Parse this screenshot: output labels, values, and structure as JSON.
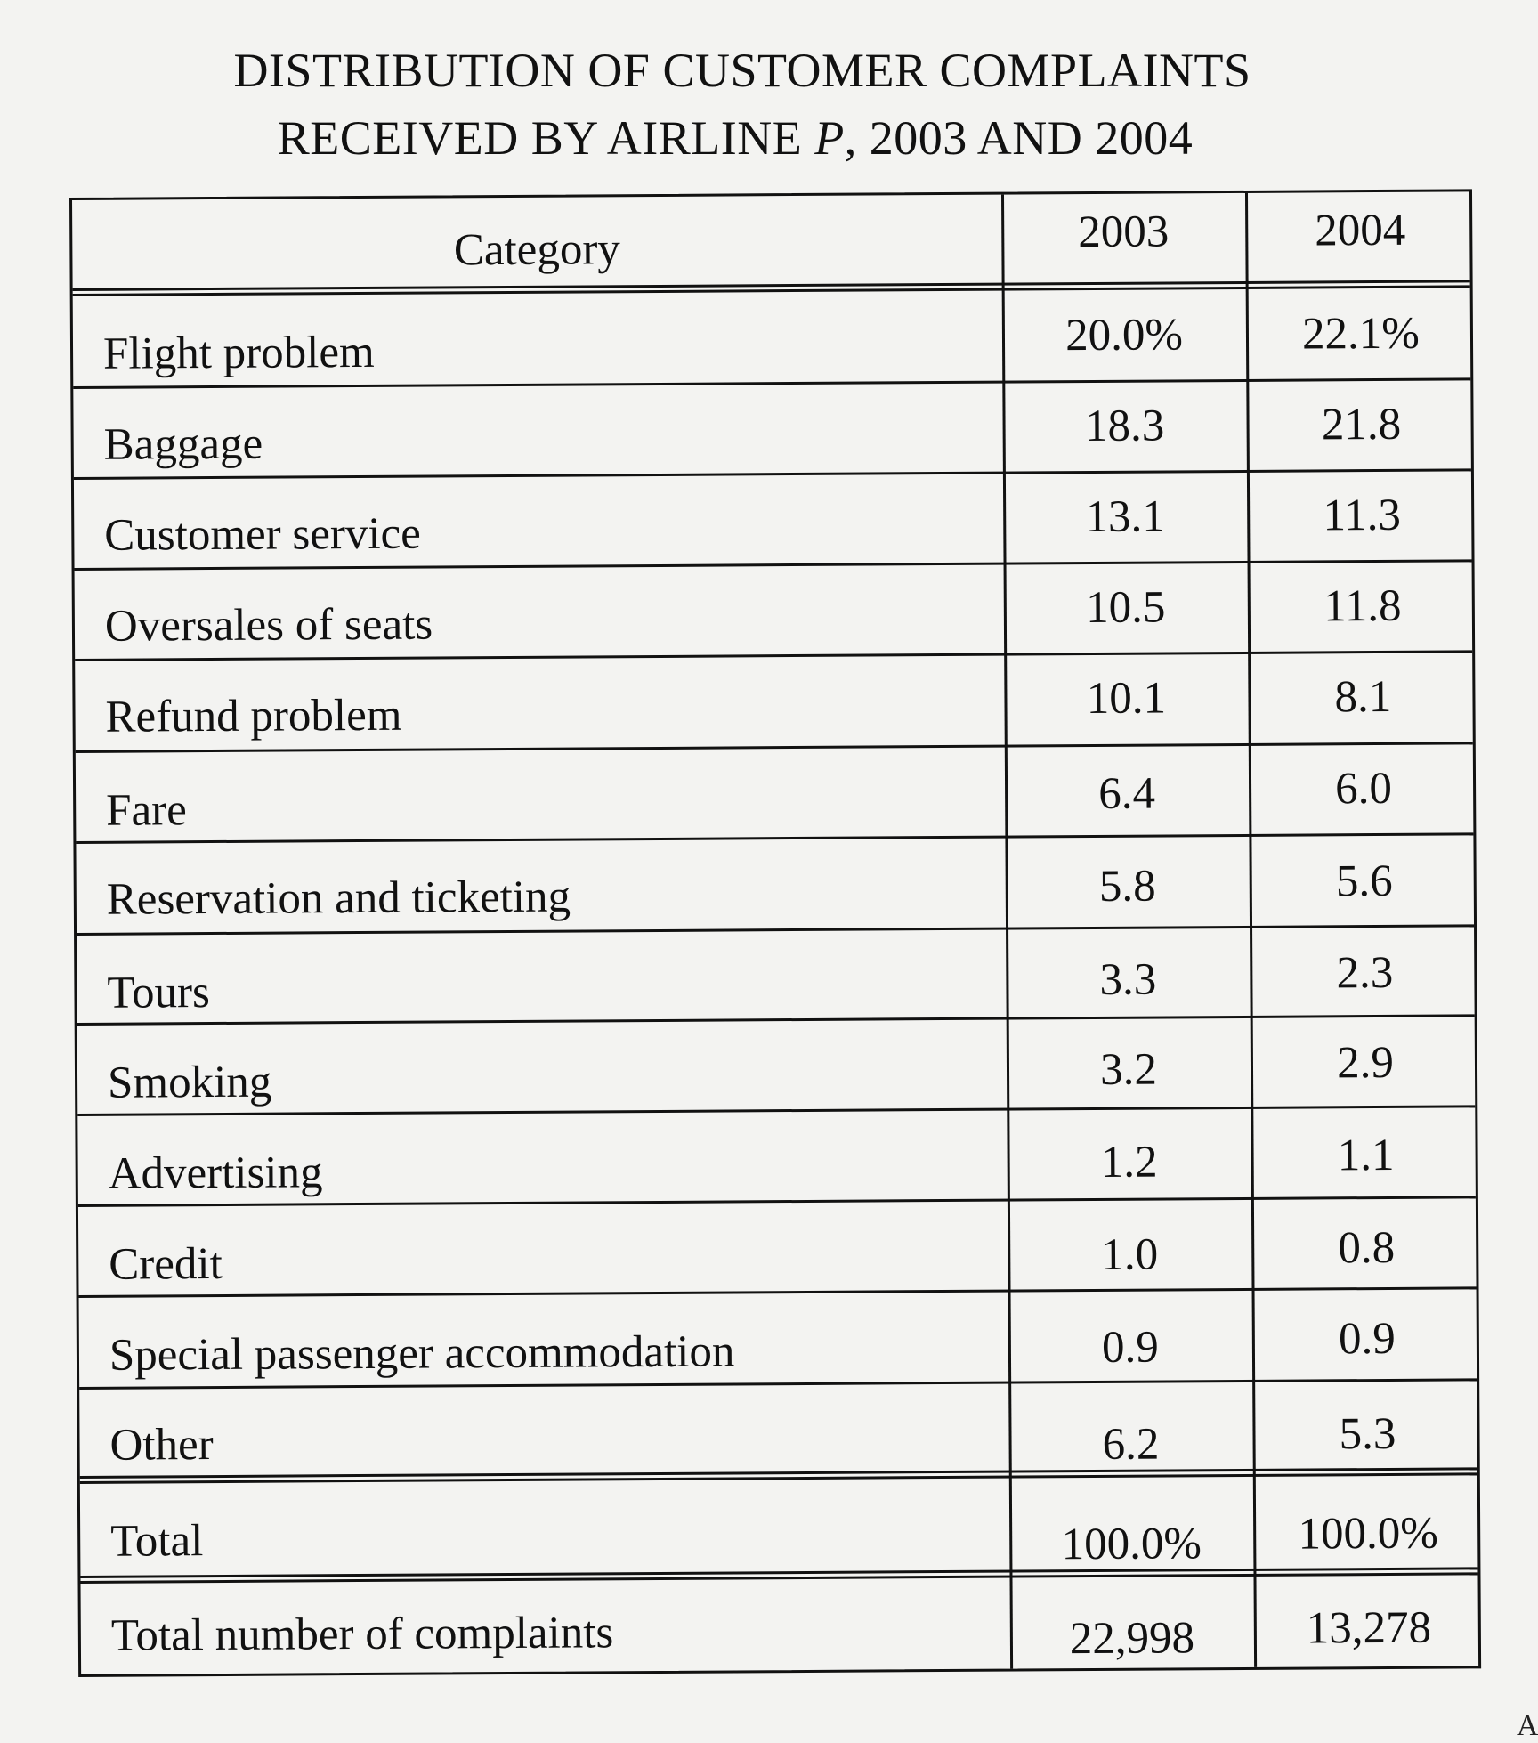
{
  "title": {
    "line1": "DISTRIBUTION OF CUSTOMER COMPLAINTS",
    "line2_prefix": "RECEIVED BY AIRLINE ",
    "line2_italic": "P",
    "line2_suffix": ", 2003 AND 2004"
  },
  "table": {
    "headers": {
      "category": "Category",
      "y2003": "2003",
      "y2004": "2004"
    },
    "rows": [
      {
        "category": "Flight problem",
        "y2003": "20.0%",
        "y2004": "22.1%"
      },
      {
        "category": "Baggage",
        "y2003": "18.3",
        "y2004": "21.8"
      },
      {
        "category": "Customer service",
        "y2003": "13.1",
        "y2004": "11.3"
      },
      {
        "category": "Oversales of seats",
        "y2003": "10.5",
        "y2004": "11.8"
      },
      {
        "category": "Refund problem",
        "y2003": "10.1",
        "y2004": "8.1"
      },
      {
        "category": "Fare",
        "y2003": "6.4",
        "y2004": "6.0"
      },
      {
        "category": "Reservation and ticketing",
        "y2003": "5.8",
        "y2004": "5.6"
      },
      {
        "category": "Tours",
        "y2003": "3.3",
        "y2004": "2.3"
      },
      {
        "category": "Smoking",
        "y2003": "3.2",
        "y2004": "2.9"
      },
      {
        "category": "Advertising",
        "y2003": "1.2",
        "y2004": "1.1"
      },
      {
        "category": "Credit",
        "y2003": "1.0",
        "y2004": "0.8"
      },
      {
        "category": "Special passenger accommodation",
        "y2003": "0.9",
        "y2004": "0.9"
      },
      {
        "category": "Other",
        "y2003": "6.2",
        "y2004": "5.3"
      }
    ],
    "total": {
      "category": "Total",
      "y2003": "100.0%",
      "y2004": "100.0%"
    },
    "count": {
      "category": "Total number of complaints",
      "y2003": "22,998",
      "y2004": "13,278"
    }
  },
  "margin_fragment": "Ai"
}
